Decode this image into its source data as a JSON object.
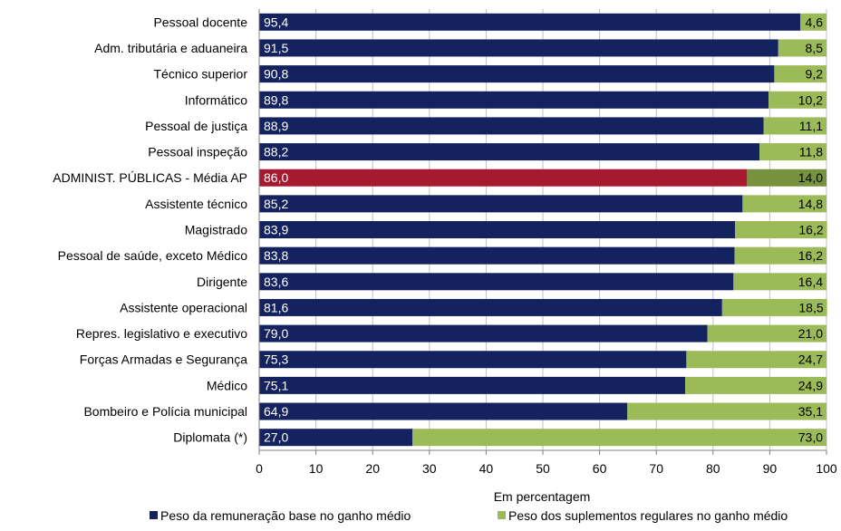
{
  "chart_data": {
    "type": "bar",
    "orientation": "horizontal",
    "stacked": true,
    "title": "",
    "xlabel": "Em percentagem",
    "ylabel": "",
    "xlim": [
      0,
      100
    ],
    "xticks": [
      0,
      10,
      20,
      30,
      40,
      50,
      60,
      70,
      80,
      90,
      100
    ],
    "grid": true,
    "legend_position": "bottom",
    "categories": [
      "Pessoal docente",
      "Adm. tributária e aduaneira",
      "Técnico superior",
      "Informático",
      "Pessoal de justiça",
      "Pessoal inspeção",
      "ADMINIST. PÚBLICAS - Média AP",
      "Assistente técnico",
      "Magistrado",
      "Pessoal de saúde, exceto Médico",
      "Dirigente",
      "Assistente operacional",
      "Repres. legislativo e executivo",
      "Forças Armadas e Segurança",
      "Médico",
      "Bombeiro e Polícia municipal",
      "Diplomata (*)"
    ],
    "series": [
      {
        "name": "Peso da remuneração base no ganho médio",
        "color": "#14235F",
        "values": [
          95.4,
          91.5,
          90.8,
          89.8,
          88.9,
          88.2,
          86.0,
          85.2,
          83.9,
          83.8,
          83.6,
          81.6,
          79.0,
          75.3,
          75.1,
          64.9,
          27.0
        ],
        "labels": [
          "95,4",
          "91,5",
          "90,8",
          "89,8",
          "88,9",
          "88,2",
          "86,0",
          "85,2",
          "83,9",
          "83,8",
          "83,6",
          "81,6",
          "79,0",
          "75,3",
          "75,1",
          "64,9",
          "27,0"
        ]
      },
      {
        "name": "Peso dos suplementos regulares no ganho médio",
        "color": "#9BBB59",
        "values": [
          4.6,
          8.5,
          9.2,
          10.2,
          11.1,
          11.8,
          14.0,
          14.8,
          16.2,
          16.2,
          16.4,
          18.5,
          21.0,
          24.7,
          24.9,
          35.1,
          73.0
        ],
        "labels": [
          "4,6",
          "8,5",
          "9,2",
          "10,2",
          "11,1",
          "11,8",
          "14,0",
          "14,8",
          "16,2",
          "16,2",
          "16,4",
          "18,5",
          "21,0",
          "24,7",
          "24,9",
          "35,1",
          "73,0"
        ]
      }
    ],
    "highlight": {
      "category": "ADMINIST. PÚBLICAS - Média AP",
      "colors": [
        "#A6192E",
        "#76923C"
      ]
    }
  }
}
